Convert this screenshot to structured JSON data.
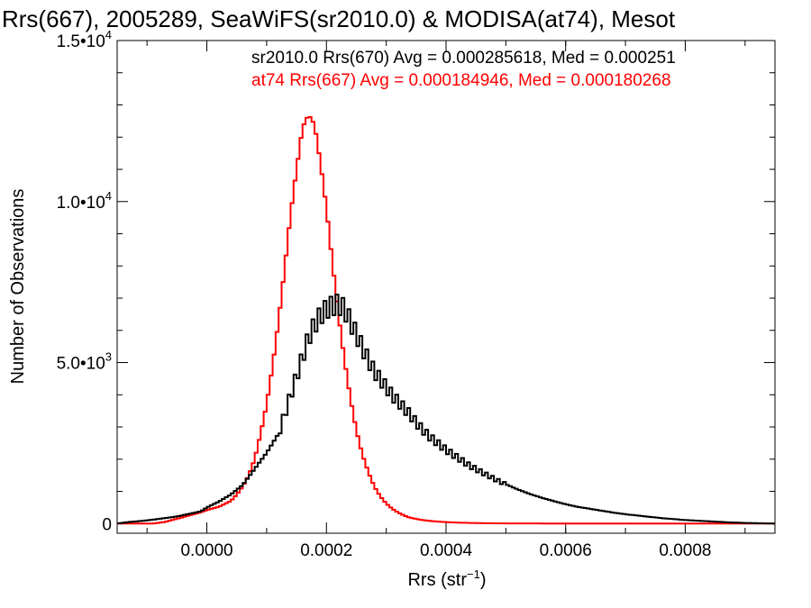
{
  "chart_data": {
    "type": "line",
    "style": "step-histogram",
    "title": "Rrs(667), 2005289, SeaWiFS(sr2010.0) & MODISA(at74), Mesot",
    "xlabel": "Rrs (str",
    "xlabel_sup": "−1",
    "xlabel_end": ")",
    "ylabel": "Number of Observations",
    "xlim": [
      -0.00015,
      0.00095
    ],
    "ylim": [
      -300,
      15000
    ],
    "x_ticks": [
      0.0,
      0.0002,
      0.0004,
      0.0006,
      0.0008
    ],
    "x_tick_labels": [
      "0.0000",
      "0.0002",
      "0.0004",
      "0.0006",
      "0.0008"
    ],
    "y_ticks": [
      {
        "value": 0,
        "base": "0",
        "exp": ""
      },
      {
        "value": 5000,
        "base": "5.0•10",
        "exp": "3"
      },
      {
        "value": 10000,
        "base": "1.0•10",
        "exp": "4"
      },
      {
        "value": 15000,
        "base": "1.5•10",
        "exp": "4"
      }
    ],
    "annotations": [
      {
        "text": "sr2010.0 Rrs(670) Avg = 0.000285618, Med = 0.000251",
        "color": "#000000"
      },
      {
        "text": "at74 Rrs(667) Avg = 0.000184946, Med = 0.000180268",
        "color": "#ff0000"
      }
    ],
    "grid": false,
    "series": [
      {
        "name": "sr2010.0 Rrs(670)",
        "color": "#000000",
        "x": [
          -0.00015,
          -0.00013,
          -0.00011,
          -9e-05,
          -7e-05,
          -5e-05,
          -3e-05,
          -1e-05,
          0.0,
          2e-05,
          4e-05,
          6e-05,
          8e-05,
          0.0001,
          0.00012,
          0.00013,
          0.00014,
          0.00015,
          0.00016,
          0.00017,
          0.00018,
          0.00019,
          0.0002,
          0.00021,
          0.00022,
          0.00023,
          0.00024,
          0.00025,
          0.00026,
          0.00027,
          0.00028,
          0.00029,
          0.0003,
          0.00031,
          0.00032,
          0.00033,
          0.00034,
          0.00035,
          0.00036,
          0.00037,
          0.00038,
          0.0004,
          0.00042,
          0.00044,
          0.00046,
          0.00048,
          0.0005,
          0.00052,
          0.00054,
          0.00056,
          0.00058,
          0.0006,
          0.00062,
          0.00064,
          0.00066,
          0.00068,
          0.0007,
          0.00072,
          0.00074,
          0.00076,
          0.00078,
          0.0008,
          0.00082,
          0.00084,
          0.00086,
          0.00088,
          0.0009,
          0.00095
        ],
        "values": [
          0,
          50,
          80,
          120,
          170,
          220,
          300,
          380,
          500,
          680,
          900,
          1200,
          1700,
          2200,
          2800,
          3400,
          4000,
          4600,
          5200,
          5800,
          6200,
          6500,
          6700,
          6800,
          6850,
          6700,
          6300,
          5900,
          5500,
          5100,
          4750,
          4500,
          4250,
          4000,
          3800,
          3600,
          3400,
          3150,
          2950,
          2750,
          2600,
          2300,
          2050,
          1800,
          1600,
          1400,
          1220,
          1060,
          920,
          800,
          700,
          600,
          520,
          460,
          400,
          340,
          290,
          250,
          210,
          170,
          140,
          110,
          90,
          70,
          50,
          35,
          20,
          0
        ]
      },
      {
        "name": "at74 Rrs(667)",
        "color": "#ff0000",
        "x": [
          -0.00015,
          -0.00013,
          -0.00011,
          -9e-05,
          -7e-05,
          -5e-05,
          -3e-05,
          -1e-05,
          0.0,
          2e-05,
          4e-05,
          5e-05,
          6e-05,
          7e-05,
          8e-05,
          9e-05,
          0.0001,
          0.00011,
          0.00012,
          0.00013,
          0.00014,
          0.00015,
          0.00016,
          0.00017,
          0.00018,
          0.00019,
          0.0002,
          0.00021,
          0.00022,
          0.00023,
          0.00024,
          0.00025,
          0.00026,
          0.00027,
          0.00028,
          0.00029,
          0.0003,
          0.00031,
          0.00032,
          0.00033,
          0.00034,
          0.00036,
          0.00038,
          0.0004,
          0.00042,
          0.00044,
          0.00046,
          0.0005,
          0.00055,
          0.0006,
          0.0007,
          0.0008,
          0.00095
        ],
        "values": [
          0,
          0,
          0,
          0,
          50,
          150,
          250,
          350,
          420,
          520,
          700,
          900,
          1150,
          1500,
          2000,
          2800,
          3700,
          4900,
          6300,
          7900,
          9600,
          11000,
          12300,
          12700,
          12400,
          11200,
          9800,
          8100,
          6500,
          5100,
          3900,
          2900,
          2150,
          1600,
          1150,
          850,
          620,
          460,
          340,
          250,
          180,
          110,
          70,
          45,
          30,
          20,
          12,
          6,
          3,
          0,
          0,
          0,
          0
        ]
      }
    ]
  }
}
